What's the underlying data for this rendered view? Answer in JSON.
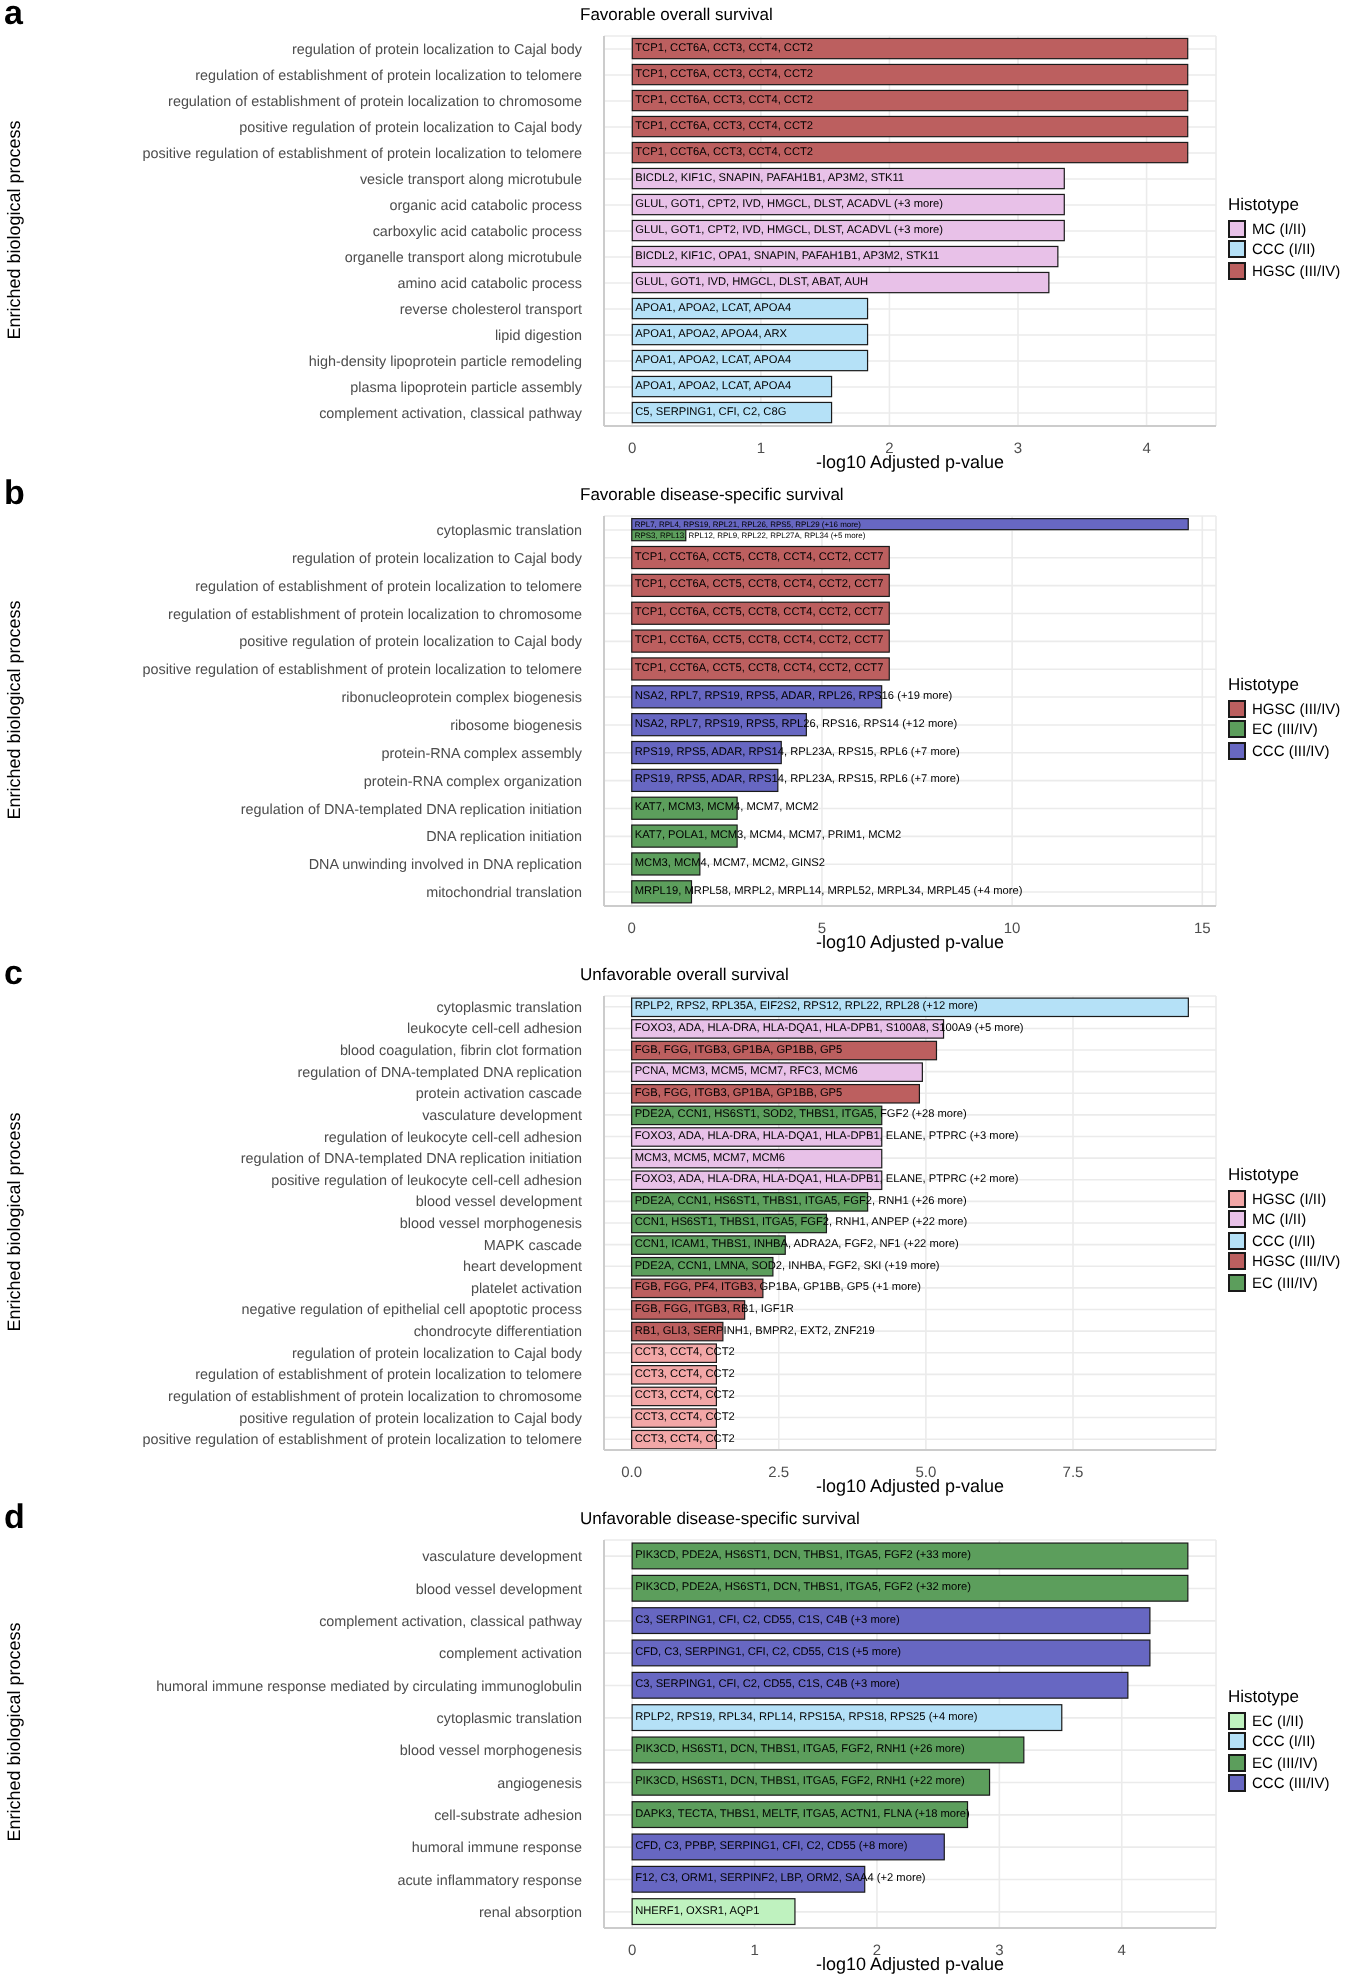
{
  "chart_data": [
    {
      "type": "bar",
      "orientation": "horizontal",
      "title": "Favorable overall survival",
      "xlabel": "-log10 Adjusted p-value",
      "ylabel": "Enriched biological process",
      "legend_title": "Histotype",
      "legend": "right",
      "grid": true,
      "annotations": [
        "a"
      ],
      "categories": [
        "regulation of protein localization to Cajal body",
        "regulation of establishment of protein localization to telomere",
        "regulation of establishment of protein localization to chromosome",
        "positive regulation of protein localization to Cajal body",
        "positive regulation of establishment of protein localization to telomere",
        "vesicle transport along microtubule",
        "organic acid catabolic process",
        "carboxylic acid catabolic process",
        "organelle transport along microtubule",
        "amino acid catabolic process",
        "reverse cholesterol transport",
        "lipid digestion",
        "high-density lipoprotein particle remodeling",
        "plasma lipoprotein particle assembly",
        "complement activation, classical pathway"
      ],
      "xlim": [
        -0.22,
        4.54
      ],
      "xticks": [
        0,
        1,
        2,
        3,
        4
      ],
      "series": [
        {
          "name": "MC (I/II)",
          "color": "#e8c1e8",
          "values": [
            null,
            null,
            null,
            null,
            null,
            3.36,
            3.36,
            3.36,
            3.31,
            3.24,
            null,
            null,
            null,
            null,
            null
          ],
          "value_labels": [
            null,
            null,
            null,
            null,
            null,
            "BICDL2, KIF1C, SNAPIN, PAFAH1B1, AP3M2, STK11",
            "GLUL, GOT1, CPT2, IVD, HMGCL, DLST, ACADVL (+3 more)",
            "GLUL, GOT1, CPT2, IVD, HMGCL, DLST, ACADVL (+3 more)",
            "BICDL2, KIF1C, OPA1, SNAPIN, PAFAH1B1, AP3M2, STK11",
            "GLUL, GOT1, IVD, HMGCL, DLST, ABAT, AUH",
            null,
            null,
            null,
            null,
            null
          ]
        },
        {
          "name": "CCC (I/II)",
          "color": "#b5e1f7",
          "values": [
            null,
            null,
            null,
            null,
            null,
            null,
            null,
            null,
            null,
            null,
            1.83,
            1.83,
            1.83,
            1.55,
            1.55
          ],
          "value_labels": [
            null,
            null,
            null,
            null,
            null,
            null,
            null,
            null,
            null,
            null,
            "APOA1, APOA2, LCAT, APOA4",
            "APOA1, APOA2, APOA4, ARX",
            "APOA1, APOA2, LCAT, APOA4",
            "APOA1, APOA2, LCAT, APOA4",
            "C5, SERPING1, CFI, C2, C8G"
          ]
        },
        {
          "name": "HGSC (III/IV)",
          "color": "#bc5f5f",
          "values": [
            4.32,
            4.32,
            4.32,
            4.32,
            4.32,
            null,
            null,
            null,
            null,
            null,
            null,
            null,
            null,
            null,
            null
          ],
          "value_labels": [
            "TCP1, CCT6A, CCT3, CCT4, CCT2",
            "TCP1, CCT6A, CCT3, CCT4, CCT2",
            "TCP1, CCT6A, CCT3, CCT4, CCT2",
            "TCP1, CCT6A, CCT3, CCT4, CCT2",
            "TCP1, CCT6A, CCT3, CCT4, CCT2",
            null,
            null,
            null,
            null,
            null,
            null,
            null,
            null,
            null,
            null
          ]
        }
      ]
    },
    {
      "type": "bar",
      "orientation": "horizontal",
      "title": "Favorable disease-specific survival",
      "xlabel": "-log10 Adjusted p-value",
      "ylabel": "Enriched biological process",
      "legend_title": "Histotype",
      "legend": "right",
      "grid": true,
      "annotations": [
        "b"
      ],
      "categories": [
        "cytoplasmic translation",
        "regulation of protein localization to Cajal body",
        "regulation of establishment of protein localization to telomere",
        "regulation of establishment of protein localization to chromosome",
        "positive regulation of protein localization to Cajal body",
        "positive regulation of establishment of protein localization to telomere",
        "ribonucleoprotein complex biogenesis",
        "ribosome biogenesis",
        "protein-RNA complex assembly",
        "protein-RNA complex organization",
        "regulation of DNA-templated DNA replication initiation",
        "DNA replication initiation",
        "DNA unwinding involved in DNA replication",
        "mitochondrial translation"
      ],
      "xlim": [
        -0.73,
        15.36
      ],
      "xticks": [
        0,
        5,
        10,
        15
      ],
      "series": [
        {
          "name": "HGSC (III/IV)",
          "color": "#bc5f5f",
          "values": [
            null,
            6.77,
            6.77,
            6.77,
            6.77,
            6.77,
            null,
            null,
            null,
            null,
            null,
            null,
            null,
            null
          ],
          "value_labels": [
            null,
            "TCP1, CCT6A, CCT5, CCT8, CCT4, CCT2, CCT7",
            "TCP1, CCT6A, CCT5, CCT8, CCT4, CCT2, CCT7",
            "TCP1, CCT6A, CCT5, CCT8, CCT4, CCT2, CCT7",
            "TCP1, CCT6A, CCT5, CCT8, CCT4, CCT2, CCT7",
            "TCP1, CCT6A, CCT5, CCT8, CCT4, CCT2, CCT7",
            null,
            null,
            null,
            null,
            null,
            null,
            null,
            null
          ]
        },
        {
          "name": "EC (III/IV)",
          "color": "#5c9e5c",
          "values": [
            1.42,
            null,
            null,
            null,
            null,
            null,
            null,
            null,
            null,
            null,
            2.77,
            2.77,
            1.79,
            1.57
          ],
          "value_labels": [
            "RPS3, RPL13, RPL12, RPL9, RPL22, RPL27A, RPL34 (+5 more)",
            null,
            null,
            null,
            null,
            null,
            null,
            null,
            null,
            null,
            "KAT7, MCM3, MCM4, MCM7, MCM2",
            "KAT7, POLA1, MCM3, MCM4, MCM7, PRIM1, MCM2",
            "MCM3, MCM4, MCM7, MCM2, GINS2",
            "MRPL19, MRPL58, MRPL2, MRPL14, MRPL52, MRPL34, MRPL45 (+4 more)"
          ]
        },
        {
          "name": "CCC (III/IV)",
          "color": "#6767c2",
          "values": [
            14.63,
            null,
            null,
            null,
            null,
            null,
            6.57,
            4.59,
            3.93,
            3.84,
            null,
            null,
            null,
            null
          ],
          "value_labels": [
            "RPL7, RPL4, RPS19, RPL21, RPL26, RPS5, RPL29 (+16 more)",
            null,
            null,
            null,
            null,
            null,
            "NSA2, RPL7, RPS19, RPS5, ADAR, RPL26, RPS16 (+19 more)",
            "NSA2, RPL7, RPS19, RPS5, RPL26, RPS16, RPS14 (+12 more)",
            "RPS19, RPS5, ADAR, RPS14, RPL23A, RPS15, RPL6 (+7 more)",
            "RPS19, RPS5, ADAR, RPS14, RPL23A, RPS15, RPL6 (+7 more)",
            null,
            null,
            null,
            null
          ]
        }
      ]
    },
    {
      "type": "bar",
      "orientation": "horizontal",
      "title": "Unfavorable overall survival",
      "xlabel": "-log10 Adjusted p-value",
      "ylabel": "Enriched biological process",
      "legend_title": "Histotype",
      "legend": "right",
      "grid": true,
      "annotations": [
        "c"
      ],
      "categories": [
        "cytoplasmic translation",
        "leukocyte cell-cell adhesion",
        "blood coagulation, fibrin clot formation",
        "regulation of DNA-templated DNA replication",
        "protein activation cascade",
        "vasculature development",
        "regulation of leukocyte cell-cell adhesion",
        "regulation of DNA-templated DNA replication initiation",
        "positive regulation of leukocyte cell-cell adhesion",
        "blood vessel development",
        "blood vessel morphogenesis",
        "MAPK cascade",
        "heart development",
        "platelet activation",
        "negative regulation of epithelial cell apoptotic process",
        "chondrocyte differentiation",
        "regulation of protein localization to Cajal body",
        "regulation of establishment of protein localization to telomere",
        "regulation of establishment of protein localization to chromosome",
        "positive regulation of protein localization to Cajal body",
        "positive regulation of establishment of protein localization to telomere"
      ],
      "xlim": [
        -0.47,
        9.93
      ],
      "xticks": [
        {
          "value": 0,
          "label": "0.0"
        },
        2.5,
        {
          "value": 5,
          "label": "5.0"
        },
        7.5
      ],
      "series": [
        {
          "name": "HGSC (I/II)",
          "color": "#f2a7a7",
          "values": [
            null,
            null,
            null,
            null,
            null,
            null,
            null,
            null,
            null,
            null,
            null,
            null,
            null,
            null,
            null,
            null,
            1.44,
            1.44,
            1.44,
            1.44,
            1.44
          ],
          "value_labels": [
            null,
            null,
            null,
            null,
            null,
            null,
            null,
            null,
            null,
            null,
            null,
            null,
            null,
            null,
            null,
            null,
            "CCT3, CCT4, CCT2",
            "CCT3, CCT4, CCT2",
            "CCT3, CCT4, CCT2",
            "CCT3, CCT4, CCT2",
            "CCT3, CCT4, CCT2"
          ]
        },
        {
          "name": "MC (I/II)",
          "color": "#e8c1e8",
          "values": [
            null,
            5.3,
            null,
            4.94,
            null,
            null,
            4.25,
            4.25,
            4.25,
            null,
            null,
            null,
            null,
            null,
            null,
            null,
            null,
            null,
            null,
            null,
            null
          ],
          "value_labels": [
            null,
            "FOXO3, ADA, HLA-DRA, HLA-DQA1, HLA-DPB1, S100A8, S100A9 (+5 more)",
            null,
            "PCNA, MCM3, MCM5, MCM7, RFC3, MCM6",
            null,
            null,
            "FOXO3, ADA, HLA-DRA, HLA-DQA1, HLA-DPB1, ELANE, PTPRC (+3 more)",
            "MCM3, MCM5, MCM7, MCM6",
            "FOXO3, ADA, HLA-DRA, HLA-DQA1, HLA-DPB1, ELANE, PTPRC (+2 more)",
            null,
            null,
            null,
            null,
            null,
            null,
            null,
            null,
            null,
            null,
            null,
            null
          ]
        },
        {
          "name": "CCC (I/II)",
          "color": "#b5e1f7",
          "values": [
            9.46,
            null,
            null,
            null,
            null,
            null,
            null,
            null,
            null,
            null,
            null,
            null,
            null,
            null,
            null,
            null,
            null,
            null,
            null,
            null,
            null
          ],
          "value_labels": [
            "RPLP2, RPS2, RPL35A, EIF2S2, RPS12, RPL22, RPL28 (+12 more)",
            null,
            null,
            null,
            null,
            null,
            null,
            null,
            null,
            null,
            null,
            null,
            null,
            null,
            null,
            null,
            null,
            null,
            null,
            null,
            null
          ]
        },
        {
          "name": "HGSC (III/IV)",
          "color": "#bc5f5f",
          "values": [
            null,
            null,
            5.18,
            null,
            4.89,
            null,
            null,
            null,
            null,
            null,
            null,
            null,
            null,
            2.23,
            1.92,
            1.55,
            null,
            null,
            null,
            null,
            null
          ],
          "value_labels": [
            null,
            null,
            "FGB, FGG, ITGB3, GP1BA, GP1BB, GP5",
            null,
            "FGB, FGG, ITGB3, GP1BA, GP1BB, GP5",
            null,
            null,
            null,
            null,
            null,
            null,
            null,
            null,
            "FGB, FGG, PF4, ITGB3, GP1BA, GP1BB, GP5 (+1 more)",
            "FGB, FGG, ITGB3, RB1, IGF1R",
            "RB1, GLI3, SERPINH1, BMPR2, EXT2, ZNF219",
            null,
            null,
            null,
            null,
            null
          ]
        },
        {
          "name": "EC (III/IV)",
          "color": "#5c9e5c",
          "values": [
            null,
            null,
            null,
            null,
            null,
            4.25,
            null,
            null,
            null,
            4.01,
            3.31,
            2.61,
            2.4,
            null,
            null,
            null,
            null,
            null,
            null,
            null,
            null
          ],
          "value_labels": [
            null,
            null,
            null,
            null,
            null,
            "PDE2A, CCN1, HS6ST1, SOD2, THBS1, ITGA5, FGF2 (+28 more)",
            null,
            null,
            null,
            "PDE2A, CCN1, HS6ST1, THBS1, ITGA5, FGF2, RNH1 (+26 more)",
            "CCN1, HS6ST1, THBS1, ITGA5, FGF2, RNH1, ANPEP (+22 more)",
            "CCN1, ICAM1, THBS1, INHBA, ADRA2A, FGF2, NF1 (+22 more)",
            "PDE2A, CCN1, LMNA, SOD2, INHBA, FGF2, SKI (+19 more)",
            null,
            null,
            null,
            null,
            null,
            null,
            null,
            null
          ]
        }
      ]
    },
    {
      "type": "bar",
      "orientation": "horizontal",
      "title": "Unfavorable disease-specific survival",
      "xlabel": "-log10 Adjusted p-value",
      "ylabel": "Enriched biological process",
      "legend_title": "Histotype",
      "legend": "right",
      "grid": true,
      "annotations": [
        "d"
      ],
      "categories": [
        "vasculature development",
        "blood vessel development",
        "complement activation, classical pathway",
        "complement activation",
        "humoral immune response mediated by circulating immunoglobulin",
        "cytoplasmic translation",
        "blood vessel morphogenesis",
        "angiogenesis",
        "cell-substrate adhesion",
        "humoral immune response",
        "acute inflammatory response",
        "renal absorption"
      ],
      "xlim": [
        -0.23,
        4.77
      ],
      "xticks": [
        0,
        1,
        2,
        3,
        4
      ],
      "series": [
        {
          "name": "EC (I/II)",
          "color": "#bff2bf",
          "values": [
            null,
            null,
            null,
            null,
            null,
            null,
            null,
            null,
            null,
            null,
            null,
            1.33
          ],
          "value_labels": [
            null,
            null,
            null,
            null,
            null,
            null,
            null,
            null,
            null,
            null,
            null,
            "NHERF1, OXSR1, AQP1"
          ]
        },
        {
          "name": "CCC (I/II)",
          "color": "#b5e1f7",
          "values": [
            null,
            null,
            null,
            null,
            null,
            3.51,
            null,
            null,
            null,
            null,
            null,
            null
          ],
          "value_labels": [
            null,
            null,
            null,
            null,
            null,
            "RPLP2, RPS19, RPL34, RPL14, RPS15A, RPS18, RPS25 (+4 more)",
            null,
            null,
            null,
            null,
            null,
            null
          ]
        },
        {
          "name": "EC (III/IV)",
          "color": "#5c9e5c",
          "values": [
            4.54,
            4.54,
            null,
            null,
            null,
            null,
            3.2,
            2.92,
            2.74,
            null,
            null,
            null
          ],
          "value_labels": [
            "PIK3CD, PDE2A, HS6ST1, DCN, THBS1, ITGA5, FGF2 (+33 more)",
            "PIK3CD, PDE2A, HS6ST1, DCN, THBS1, ITGA5, FGF2 (+32 more)",
            null,
            null,
            null,
            null,
            "PIK3CD, HS6ST1, DCN, THBS1, ITGA5, FGF2, RNH1 (+26 more)",
            "PIK3CD, HS6ST1, DCN, THBS1, ITGA5, FGF2, RNH1 (+22 more)",
            "DAPK3, TECTA, THBS1, MELTF, ITGA5, ACTN1, FLNA (+18 more)",
            null,
            null,
            null
          ]
        },
        {
          "name": "CCC (III/IV)",
          "color": "#6767c2",
          "values": [
            null,
            null,
            4.23,
            4.23,
            4.05,
            null,
            null,
            null,
            null,
            2.55,
            1.9,
            null
          ],
          "value_labels": [
            null,
            null,
            "C3, SERPING1, CFI, C2, CD55, C1S, C4B (+3 more)",
            "CFD, C3, SERPING1, CFI, C2, CD55, C1S (+5 more)",
            "C3, SERPING1, CFI, C2, CD55, C1S, C4B (+3 more)",
            null,
            null,
            null,
            null,
            "CFD, C3, PPBP, SERPING1, CFI, C2, CD55 (+8 more)",
            "F12, C3, ORM1, SERPINF2, LBP, ORM2, SAA4 (+2 more)",
            null
          ]
        }
      ]
    }
  ]
}
